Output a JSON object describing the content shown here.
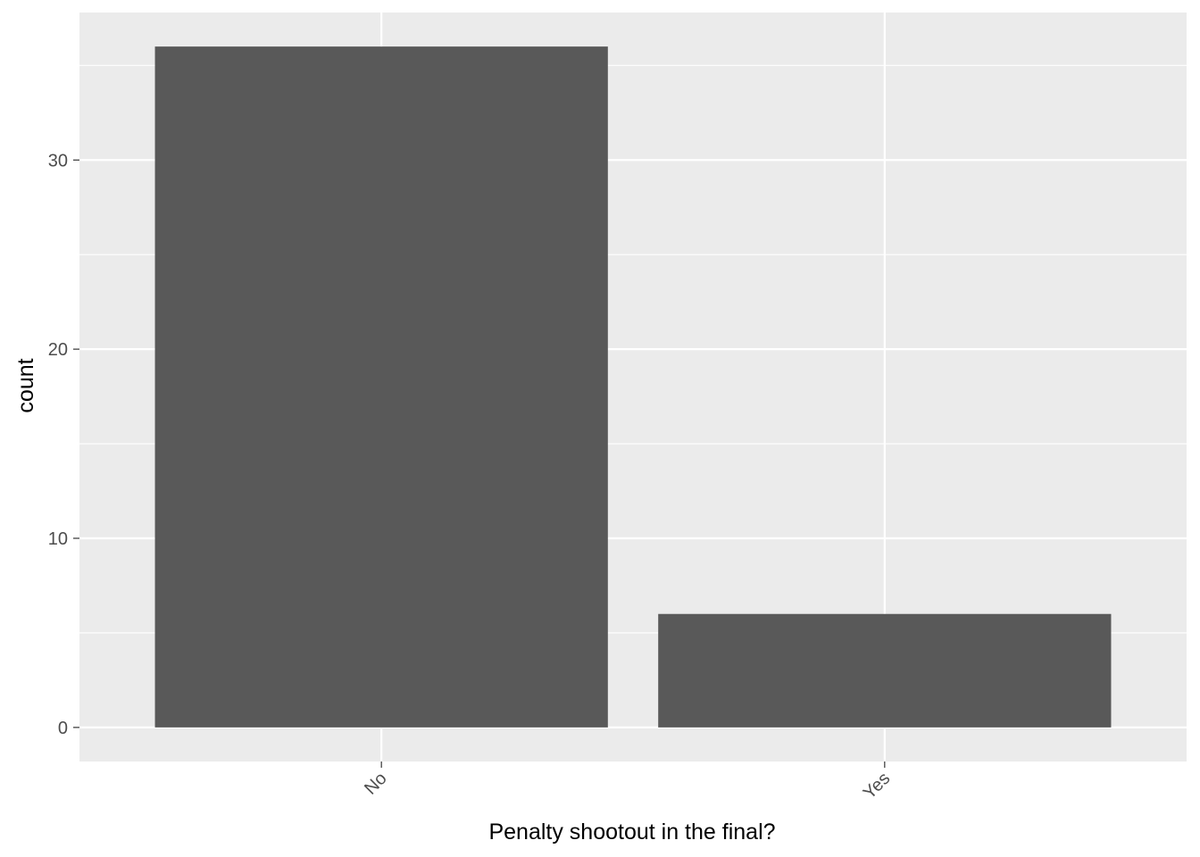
{
  "chart_data": {
    "type": "bar",
    "categories": [
      "No",
      "Yes"
    ],
    "values": [
      36,
      6
    ],
    "title": "",
    "xlabel": "Penalty shootout in the final?",
    "ylabel": "count",
    "ylim": [
      -1.8,
      37.8
    ],
    "yticks": [
      0,
      10,
      20,
      30
    ],
    "ytick_labels": [
      "0",
      "10",
      "20",
      "30"
    ],
    "grid": true,
    "legend": "none",
    "colors": {
      "panel_background": "#EBEBEB",
      "gridline": "#FFFFFF",
      "bar_fill": "#595959",
      "tick_text": "#4D4D4D",
      "tick_mark": "#333333",
      "axis_title": "#000000"
    }
  }
}
